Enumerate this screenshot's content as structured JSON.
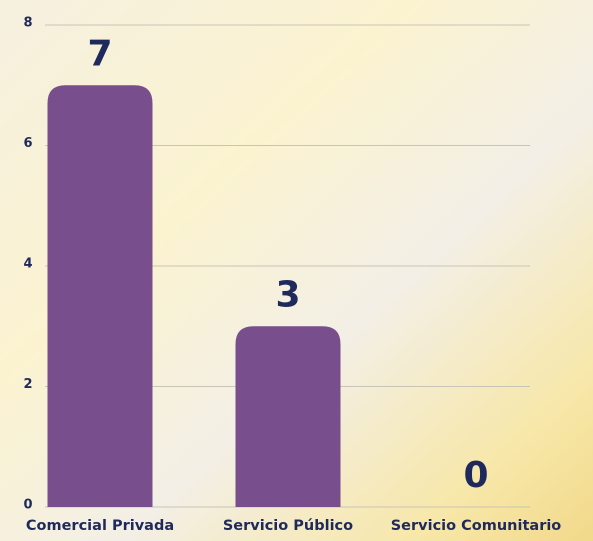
{
  "chart_data": {
    "type": "bar",
    "categories": [
      "Comercial Privada",
      "Servicio Público",
      "Servicio Comunitario"
    ],
    "values": [
      7,
      3,
      0
    ],
    "color": "#784e8c",
    "ylim": [
      0,
      8
    ],
    "yticks": [
      0,
      2,
      4,
      6,
      8
    ],
    "grid": true
  }
}
